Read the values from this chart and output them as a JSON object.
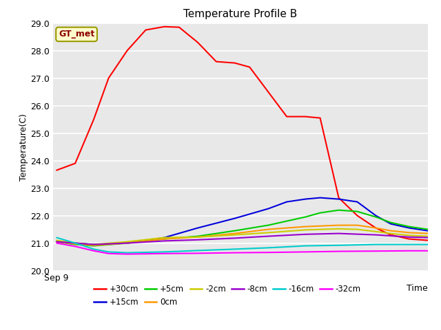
{
  "title": "Temperature Profile B",
  "xlabel": "Time",
  "ylabel": "Temperature(C)",
  "ylim": [
    20.0,
    29.0
  ],
  "yticks": [
    20.0,
    21.0,
    22.0,
    23.0,
    24.0,
    25.0,
    26.0,
    27.0,
    28.0,
    29.0
  ],
  "xtick_pos": 0.0,
  "xticklabel": "Sep 9",
  "xlim_left": -0.01,
  "xlim_right": 1.0,
  "plot_bg": "#e8e8e8",
  "fig_bg": "#ffffff",
  "grid_color": "#ffffff",
  "annotation_text": "GT_met",
  "annotation_bg": "#ffffcc",
  "annotation_border": "#999900",
  "annotation_text_color": "#8b0000",
  "legend_order": [
    "+30cm",
    "+15cm",
    "+5cm",
    "0cm",
    "-2cm",
    "-8cm",
    "-16cm",
    "-32cm"
  ],
  "series": {
    "+30cm": {
      "color": "#ff0000",
      "x": [
        0.0,
        0.05,
        0.1,
        0.14,
        0.19,
        0.24,
        0.29,
        0.33,
        0.38,
        0.43,
        0.48,
        0.52,
        0.57,
        0.62,
        0.67,
        0.71,
        0.76,
        0.81,
        0.86,
        0.9,
        0.95,
        1.0
      ],
      "y": [
        23.65,
        23.9,
        25.5,
        27.0,
        28.0,
        28.75,
        28.87,
        28.85,
        28.3,
        27.6,
        27.55,
        27.4,
        26.5,
        25.6,
        25.6,
        25.55,
        22.65,
        22.0,
        21.55,
        21.3,
        21.15,
        21.1
      ]
    },
    "+15cm": {
      "color": "#0000dd",
      "x": [
        0.0,
        0.05,
        0.1,
        0.19,
        0.29,
        0.38,
        0.48,
        0.57,
        0.62,
        0.67,
        0.71,
        0.76,
        0.81,
        0.86,
        0.9,
        0.95,
        1.0
      ],
      "y": [
        21.05,
        21.0,
        20.95,
        21.0,
        21.2,
        21.55,
        21.9,
        22.25,
        22.5,
        22.6,
        22.65,
        22.6,
        22.5,
        22.0,
        21.7,
        21.55,
        21.45
      ]
    },
    "+5cm": {
      "color": "#00cc00",
      "x": [
        0.0,
        0.05,
        0.1,
        0.19,
        0.29,
        0.38,
        0.48,
        0.57,
        0.67,
        0.71,
        0.76,
        0.81,
        0.86,
        0.9,
        0.95,
        1.0
      ],
      "y": [
        21.05,
        20.95,
        20.9,
        21.0,
        21.15,
        21.25,
        21.45,
        21.65,
        21.95,
        22.1,
        22.2,
        22.15,
        21.95,
        21.75,
        21.6,
        21.5
      ]
    },
    "0cm": {
      "color": "#ff9900",
      "x": [
        0.0,
        0.05,
        0.1,
        0.19,
        0.29,
        0.38,
        0.48,
        0.57,
        0.67,
        0.76,
        0.81,
        0.86,
        0.9,
        0.95,
        1.0
      ],
      "y": [
        21.05,
        20.97,
        20.92,
        21.0,
        21.15,
        21.22,
        21.35,
        21.5,
        21.6,
        21.65,
        21.65,
        21.55,
        21.45,
        21.38,
        21.35
      ]
    },
    "-2cm": {
      "color": "#cccc00",
      "x": [
        0.0,
        0.05,
        0.1,
        0.19,
        0.29,
        0.38,
        0.48,
        0.57,
        0.67,
        0.76,
        0.81,
        0.86,
        0.9,
        0.95,
        1.0
      ],
      "y": [
        21.1,
        21.0,
        20.95,
        21.05,
        21.2,
        21.22,
        21.3,
        21.38,
        21.48,
        21.52,
        21.5,
        21.42,
        21.35,
        21.28,
        21.25
      ]
    },
    "-8cm": {
      "color": "#9900cc",
      "x": [
        0.0,
        0.05,
        0.1,
        0.19,
        0.29,
        0.38,
        0.48,
        0.57,
        0.67,
        0.76,
        0.86,
        0.95,
        1.0
      ],
      "y": [
        21.05,
        21.0,
        20.95,
        21.0,
        21.08,
        21.12,
        21.18,
        21.25,
        21.32,
        21.35,
        21.3,
        21.22,
        21.2
      ]
    },
    "-16cm": {
      "color": "#00cccc",
      "x": [
        0.0,
        0.05,
        0.1,
        0.14,
        0.19,
        0.29,
        0.38,
        0.48,
        0.57,
        0.67,
        0.76,
        0.86,
        0.95,
        1.0
      ],
      "y": [
        21.2,
        21.0,
        20.78,
        20.68,
        20.65,
        20.68,
        20.73,
        20.78,
        20.83,
        20.9,
        20.92,
        20.95,
        20.95,
        20.95
      ]
    },
    "-32cm": {
      "color": "#ff00ff",
      "x": [
        0.0,
        0.05,
        0.1,
        0.14,
        0.19,
        0.29,
        0.38,
        0.48,
        0.57,
        0.67,
        0.76,
        0.86,
        0.95,
        1.0
      ],
      "y": [
        21.0,
        20.88,
        20.72,
        20.62,
        20.6,
        20.62,
        20.63,
        20.65,
        20.66,
        20.68,
        20.7,
        20.71,
        20.72,
        20.72
      ]
    }
  }
}
